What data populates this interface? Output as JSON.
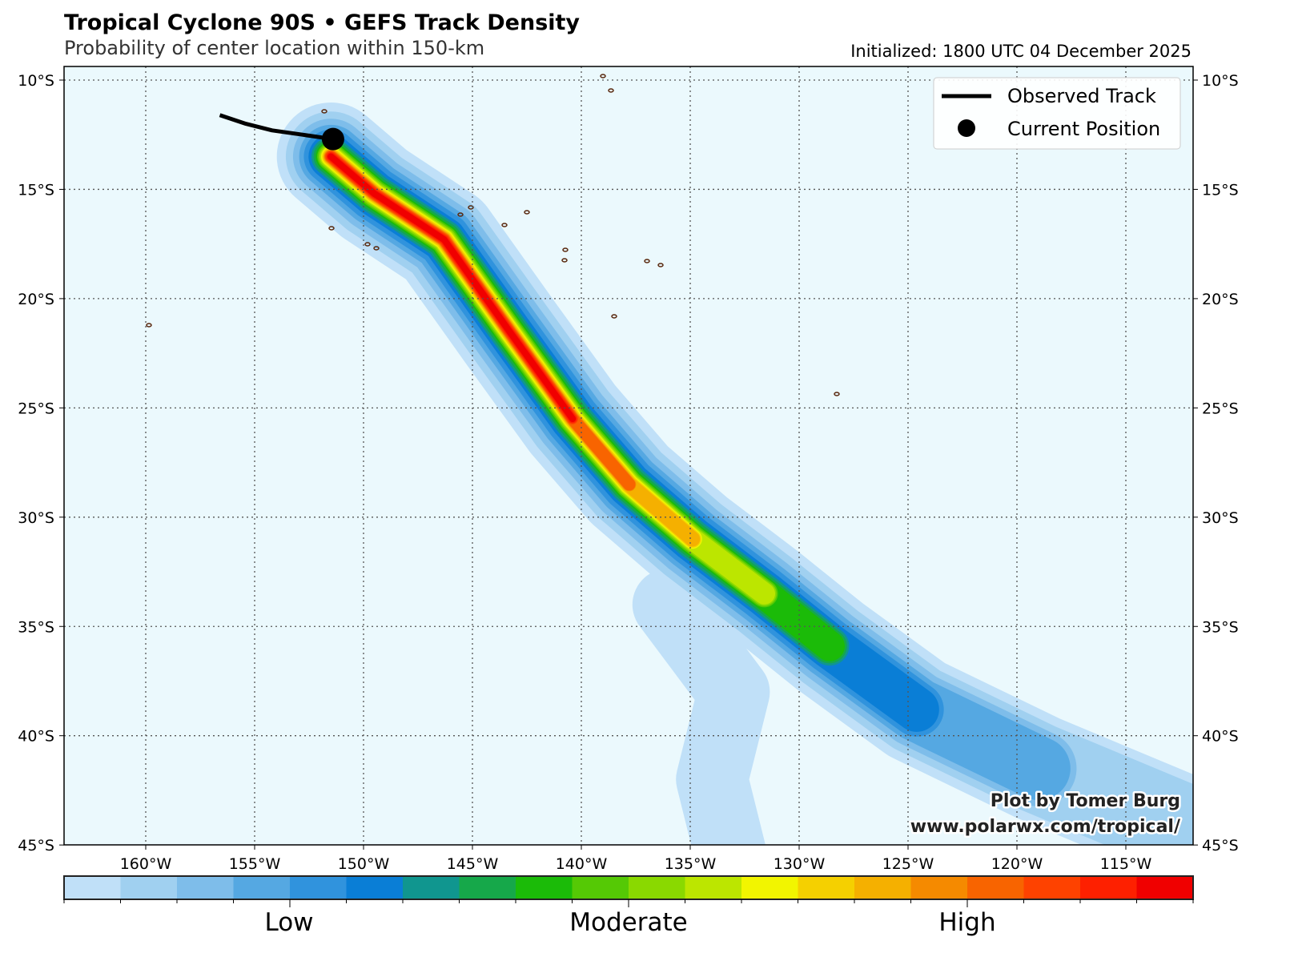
{
  "header": {
    "title": "Tropical Cyclone 90S • GEFS Track Density",
    "subtitle": "Probability of center location within 150-km",
    "initialized": "Initialized: 1800 UTC 04 December 2025"
  },
  "chart_data": {
    "type": "heatmap",
    "title": "Tropical Cyclone 90S • GEFS Track Density",
    "subtitle": "Probability of center location within 150-km",
    "x_ticks": [
      "160°W",
      "155°W",
      "150°W",
      "145°W",
      "140°W",
      "135°W",
      "130°W",
      "125°W",
      "120°W",
      "115°W"
    ],
    "x_tick_values": [
      -160,
      -155,
      -150,
      -145,
      -140,
      -135,
      -130,
      -125,
      -120,
      -115
    ],
    "y_ticks": [
      "10°S",
      "15°S",
      "20°S",
      "25°S",
      "30°S",
      "35°S",
      "40°S",
      "45°S"
    ],
    "y_tick_values": [
      -10,
      -15,
      -20,
      -25,
      -30,
      -35,
      -40,
      -45
    ],
    "xlim": [
      -163.75,
      -112.1
    ],
    "ylim": [
      -45,
      -9.4
    ],
    "grid": true,
    "legend": {
      "placement": "top-right",
      "entries": [
        "Observed Track",
        "Current Position"
      ]
    },
    "observed_track": [
      [
        -156.6,
        -11.6
      ],
      [
        -155.4,
        -12.0
      ],
      [
        -154.2,
        -12.3
      ],
      [
        -152.8,
        -12.5
      ],
      [
        -151.4,
        -12.7
      ]
    ],
    "current_position": [
      -151.4,
      -12.7
    ],
    "density_axis": [
      [
        -151.5,
        -13.5
      ],
      [
        -149.5,
        -15.2
      ],
      [
        -146.3,
        -17.3
      ],
      [
        -143.3,
        -21.5
      ],
      [
        -140.4,
        -25.5
      ],
      [
        -137.8,
        -28.5
      ],
      [
        -134.9,
        -31.0
      ],
      [
        -131.6,
        -33.5
      ],
      [
        -128.6,
        -35.9
      ],
      [
        -124.6,
        -38.8
      ],
      [
        -119.0,
        -41.5
      ],
      [
        -112.5,
        -44.2
      ]
    ],
    "colorbar": {
      "colors": [
        "#c0e0f8",
        "#a0d0f0",
        "#7ebdea",
        "#55a8e2",
        "#3093dd",
        "#0a7ed6",
        "#10968f",
        "#16a84a",
        "#1bbb08",
        "#55c905",
        "#8ad900",
        "#bce600",
        "#f2f500",
        "#f5d000",
        "#f5b000",
        "#f58a00",
        "#f86400",
        "#fe4200",
        "#fe2000",
        "#f00000"
      ],
      "labels": [
        "Low",
        "Moderate",
        "High"
      ]
    }
  },
  "legend": {
    "track_label": "Observed Track",
    "position_label": "Current Position"
  },
  "credits": {
    "line1": "Plot by Tomer Burg",
    "line2": "www.polarwx.com/tropical/"
  },
  "colors": {
    "ocean": "#ebf9fd",
    "land": "#5a2a10",
    "track": "#000000"
  }
}
